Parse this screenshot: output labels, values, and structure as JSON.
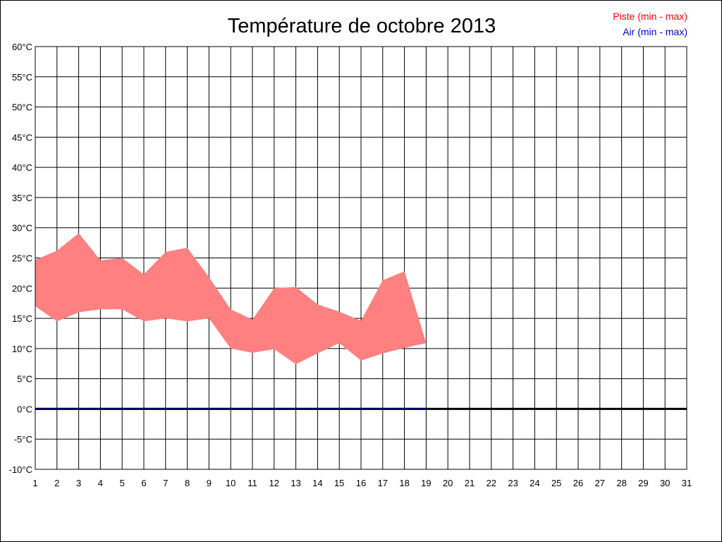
{
  "chart_data": {
    "type": "area",
    "title": "Température de octobre 2013",
    "xlabel": "",
    "ylabel": "",
    "x": [
      1,
      2,
      3,
      4,
      5,
      6,
      7,
      8,
      9,
      10,
      11,
      12,
      13,
      14,
      15,
      16,
      17,
      18,
      19,
      20,
      21,
      22,
      23,
      24,
      25,
      26,
      27,
      28,
      29,
      30,
      31
    ],
    "xlim": [
      1,
      31
    ],
    "ylim": [
      -10,
      60
    ],
    "y_ticks": [
      "-10°C",
      "-5°C",
      "0°C",
      "5°C",
      "10°C",
      "15°C",
      "20°C",
      "25°C",
      "30°C",
      "35°C",
      "40°C",
      "45°C",
      "50°C",
      "55°C",
      "60°C"
    ],
    "x_ticks": [
      "1",
      "2",
      "3",
      "4",
      "5",
      "6",
      "7",
      "8",
      "9",
      "10",
      "11",
      "12",
      "13",
      "14",
      "15",
      "16",
      "17",
      "18",
      "19",
      "20",
      "21",
      "22",
      "23",
      "24",
      "25",
      "26",
      "27",
      "28",
      "29",
      "30",
      "31"
    ],
    "grid": true,
    "legend_position": "top-right",
    "series": [
      {
        "name": "Piste (min - max)",
        "color": "#ff0000",
        "fill": "#ff8080",
        "days": [
          1,
          2,
          3,
          4,
          5,
          6,
          7,
          8,
          9,
          10,
          11,
          12,
          13,
          14,
          15,
          16,
          17,
          18,
          19
        ],
        "min": [
          17,
          14.5,
          16,
          16.5,
          16.5,
          14.5,
          15,
          14.5,
          15,
          10,
          9.3,
          9.9,
          7.4,
          9.2,
          10.9,
          8,
          9.2,
          10.1,
          10.9
        ],
        "max": [
          24.7,
          26.2,
          29.1,
          24.6,
          25,
          22.3,
          26,
          26.7,
          21.8,
          16.5,
          14.8,
          20,
          20.2,
          17.3,
          16.1,
          14.6,
          21.3,
          22.8,
          10.9
        ]
      },
      {
        "name": "Air (min - max)",
        "color": "#0000cc",
        "days": [
          1,
          2,
          3,
          4,
          5,
          6,
          7,
          8,
          9,
          10,
          11,
          12,
          13,
          14,
          15,
          16,
          17,
          18,
          19
        ],
        "min": [
          0,
          0,
          0,
          0,
          0,
          0,
          0,
          0,
          0,
          0,
          0,
          0,
          0,
          0,
          0,
          0,
          0,
          0,
          0
        ],
        "max": [
          0,
          0,
          0,
          0,
          0,
          0,
          0,
          0,
          0,
          0,
          0,
          0,
          0,
          0,
          0,
          0,
          0,
          0,
          0
        ]
      }
    ]
  }
}
